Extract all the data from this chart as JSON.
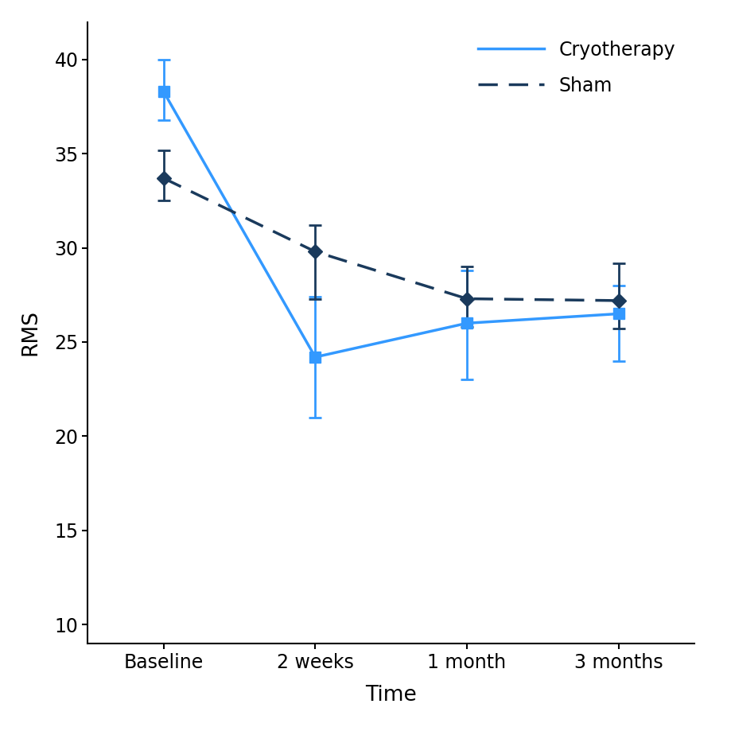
{
  "x_labels": [
    "Baseline",
    "2 weeks",
    "1 month",
    "3 months"
  ],
  "x_positions": [
    0,
    1,
    2,
    3
  ],
  "cryo_means": [
    38.3,
    24.2,
    26.0,
    26.5
  ],
  "cryo_err_upper": [
    1.7,
    3.2,
    2.8,
    1.5
  ],
  "cryo_err_lower": [
    1.5,
    3.2,
    3.0,
    2.5
  ],
  "sham_means": [
    33.7,
    29.8,
    27.3,
    27.2
  ],
  "sham_err_upper": [
    1.5,
    1.4,
    1.7,
    2.0
  ],
  "sham_err_lower": [
    1.2,
    2.5,
    1.5,
    1.5
  ],
  "cryo_color": "#3399FF",
  "sham_color": "#1A3A5C",
  "ylabel": "RMS",
  "xlabel": "Time",
  "ylim": [
    9,
    42
  ],
  "yticks": [
    10,
    15,
    20,
    25,
    30,
    35,
    40
  ],
  "legend_labels": [
    "Cryotherapy",
    "Sham"
  ],
  "bg_color": "#FFFFFF"
}
